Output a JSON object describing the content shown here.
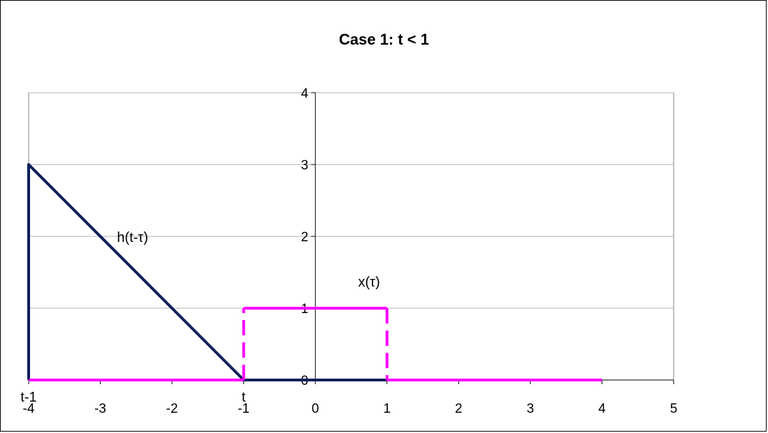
{
  "chart_data": {
    "type": "line",
    "title": "Case 1: t < 1",
    "xlabel": "",
    "ylabel": "",
    "xlim": [
      -4,
      5
    ],
    "ylim": [
      0,
      4
    ],
    "x_ticks": [
      -4,
      -3,
      -2,
      -1,
      0,
      1,
      2,
      3,
      4,
      5
    ],
    "y_ticks": [
      0,
      1,
      2,
      3,
      4
    ],
    "grid": "horizontal",
    "series": [
      {
        "name": "h(t-τ)",
        "color": "#0a1f5c",
        "points": [
          [
            -4,
            0
          ],
          [
            -4,
            3
          ],
          [
            -1,
            0
          ],
          [
            4,
            0
          ]
        ]
      },
      {
        "name": "x(τ)",
        "color": "#ff00ff",
        "dashed_verticals": true,
        "points": [
          [
            -4,
            0
          ],
          [
            -1,
            0
          ],
          [
            -1,
            1
          ],
          [
            1,
            1
          ],
          [
            1,
            0
          ],
          [
            4,
            0
          ]
        ]
      }
    ],
    "annotations": [
      {
        "text": "h(t-τ)",
        "x": -2.55,
        "y": 1.92
      },
      {
        "text": "x(τ)",
        "x": 0.75,
        "y": 1.3
      },
      {
        "text": "t-1",
        "x": -4,
        "y": -0.3
      },
      {
        "text": "t",
        "x": -1,
        "y": -0.3
      }
    ]
  }
}
